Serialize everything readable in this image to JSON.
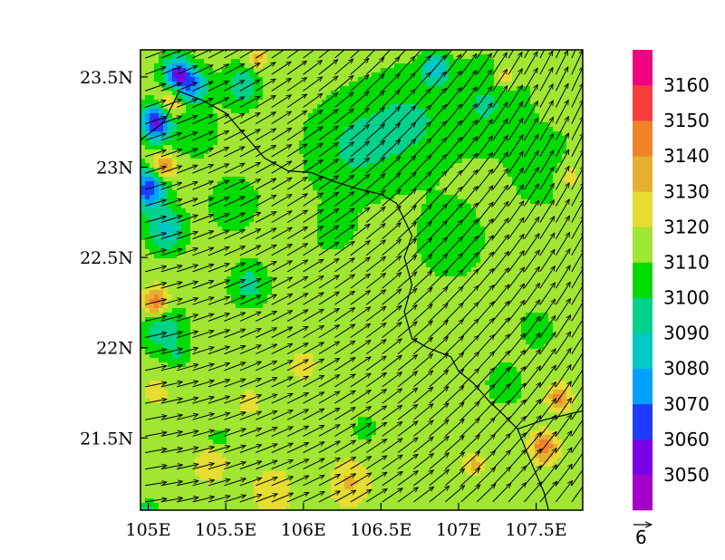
{
  "map": {
    "type": "filled-contour-with-wind-vectors",
    "lon_range": [
      104.95,
      107.8
    ],
    "lat_range": [
      21.1,
      23.65
    ],
    "x_ticks": [
      {
        "value": 105,
        "label": "105E"
      },
      {
        "value": 105.5,
        "label": "105.5E"
      },
      {
        "value": 106,
        "label": "106E"
      },
      {
        "value": 106.5,
        "label": "106.5E"
      },
      {
        "value": 107,
        "label": "107E"
      },
      {
        "value": 107.5,
        "label": "107.5E"
      }
    ],
    "y_ticks": [
      {
        "value": 21.5,
        "label": "21.5N"
      },
      {
        "value": 22,
        "label": "22N"
      },
      {
        "value": 22.5,
        "label": "22.5N"
      },
      {
        "value": 23,
        "label": "23N"
      },
      {
        "value": 23.5,
        "label": "23.5N"
      }
    ],
    "grid": false,
    "dominant_value": 3115
  },
  "colorbar": {
    "levels": [
      "3050",
      "3060",
      "3070",
      "3080",
      "3090",
      "3100",
      "3110",
      "3120",
      "3130",
      "3140",
      "3150",
      "3160"
    ],
    "colors": [
      "#a400c8",
      "#7a00e6",
      "#1e3cff",
      "#00a0ff",
      "#00c8c8",
      "#00d28c",
      "#00dc00",
      "#a0e632",
      "#e6dc32",
      "#e6af2d",
      "#f08228",
      "#fa3c3c",
      "#f00082"
    ]
  },
  "reference_vector": {
    "label": "6"
  },
  "blobs": [
    {
      "lon": 105.05,
      "lat": 23.25,
      "v": 3055,
      "r": 0.1
    },
    {
      "lon": 105.0,
      "lat": 22.88,
      "v": 3062,
      "r": 0.11
    },
    {
      "lon": 105.18,
      "lat": 23.52,
      "v": 3065,
      "r": 0.09
    },
    {
      "lon": 105.28,
      "lat": 23.45,
      "v": 3075,
      "r": 0.1
    },
    {
      "lon": 105.1,
      "lat": 23.0,
      "v": 3150,
      "r": 0.07
    },
    {
      "lon": 105.05,
      "lat": 22.25,
      "v": 3152,
      "r": 0.08
    },
    {
      "lon": 105.15,
      "lat": 23.35,
      "v": 3140,
      "r": 0.09
    },
    {
      "lon": 105.12,
      "lat": 22.65,
      "v": 3085,
      "r": 0.12
    },
    {
      "lon": 105.1,
      "lat": 22.1,
      "v": 3092,
      "r": 0.14
    },
    {
      "lon": 105.3,
      "lat": 23.2,
      "v": 3100,
      "r": 0.14
    },
    {
      "lon": 105.55,
      "lat": 22.8,
      "v": 3100,
      "r": 0.15
    },
    {
      "lon": 105.65,
      "lat": 22.35,
      "v": 3095,
      "r": 0.12
    },
    {
      "lon": 105.6,
      "lat": 23.45,
      "v": 3092,
      "r": 0.12
    },
    {
      "lon": 106.3,
      "lat": 23.1,
      "v": 3100,
      "r": 0.3
    },
    {
      "lon": 106.7,
      "lat": 23.25,
      "v": 3100,
      "r": 0.3
    },
    {
      "lon": 107.2,
      "lat": 23.35,
      "v": 3100,
      "r": 0.25
    },
    {
      "lon": 107.55,
      "lat": 23.0,
      "v": 3100,
      "r": 0.2
    },
    {
      "lon": 106.95,
      "lat": 22.6,
      "v": 3102,
      "r": 0.22
    },
    {
      "lon": 106.2,
      "lat": 22.65,
      "v": 3103,
      "r": 0.12
    },
    {
      "lon": 106.85,
      "lat": 23.55,
      "v": 3085,
      "r": 0.08
    },
    {
      "lon": 107.3,
      "lat": 23.5,
      "v": 3135,
      "r": 0.07
    },
    {
      "lon": 105.7,
      "lat": 23.6,
      "v": 3135,
      "r": 0.06
    },
    {
      "lon": 107.1,
      "lat": 21.35,
      "v": 3135,
      "r": 0.06
    },
    {
      "lon": 107.55,
      "lat": 21.45,
      "v": 3150,
      "r": 0.08
    },
    {
      "lon": 107.65,
      "lat": 21.72,
      "v": 3145,
      "r": 0.07
    },
    {
      "lon": 107.7,
      "lat": 22.95,
      "v": 3130,
      "r": 0.1
    },
    {
      "lon": 106.3,
      "lat": 21.25,
      "v": 3132,
      "r": 0.12
    },
    {
      "lon": 105.8,
      "lat": 21.2,
      "v": 3130,
      "r": 0.12
    },
    {
      "lon": 105.4,
      "lat": 21.35,
      "v": 3128,
      "r": 0.1
    },
    {
      "lon": 105.65,
      "lat": 21.7,
      "v": 3128,
      "r": 0.07
    },
    {
      "lon": 106.0,
      "lat": 21.9,
      "v": 3127,
      "r": 0.08
    },
    {
      "lon": 106.4,
      "lat": 21.55,
      "v": 3102,
      "r": 0.07
    },
    {
      "lon": 105.45,
      "lat": 21.5,
      "v": 3103,
      "r": 0.06
    },
    {
      "lon": 107.3,
      "lat": 21.8,
      "v": 3102,
      "r": 0.12
    },
    {
      "lon": 107.5,
      "lat": 22.1,
      "v": 3100,
      "r": 0.1
    },
    {
      "lon": 105.0,
      "lat": 21.1,
      "v": 3090,
      "r": 0.05
    },
    {
      "lon": 105.05,
      "lat": 21.75,
      "v": 3128,
      "r": 0.07
    },
    {
      "lon": 105.2,
      "lat": 21.95,
      "v": 3102,
      "r": 0.06
    }
  ],
  "border": [
    [
      104.95,
      23.15
    ],
    [
      105.1,
      23.25
    ],
    [
      105.2,
      23.42
    ],
    [
      105.35,
      23.37
    ],
    [
      105.5,
      23.3
    ],
    [
      105.6,
      23.2
    ],
    [
      105.75,
      23.05
    ],
    [
      105.9,
      22.98
    ],
    [
      106.05,
      22.97
    ],
    [
      106.2,
      22.92
    ],
    [
      106.35,
      22.88
    ],
    [
      106.5,
      22.85
    ],
    [
      106.6,
      22.8
    ],
    [
      106.7,
      22.62
    ],
    [
      106.65,
      22.5
    ],
    [
      106.7,
      22.35
    ],
    [
      106.65,
      22.2
    ],
    [
      106.7,
      22.05
    ],
    [
      106.8,
      22.0
    ],
    [
      106.95,
      21.95
    ],
    [
      107.0,
      21.87
    ],
    [
      107.1,
      21.8
    ],
    [
      107.2,
      21.7
    ],
    [
      107.3,
      21.62
    ],
    [
      107.38,
      21.55
    ],
    [
      107.55,
      21.6
    ],
    [
      107.65,
      21.62
    ],
    [
      107.8,
      21.65
    ]
  ],
  "coast": [
    [
      107.38,
      21.55
    ],
    [
      107.45,
      21.4
    ],
    [
      107.5,
      21.3
    ],
    [
      107.55,
      21.2
    ],
    [
      107.58,
      21.1
    ]
  ]
}
